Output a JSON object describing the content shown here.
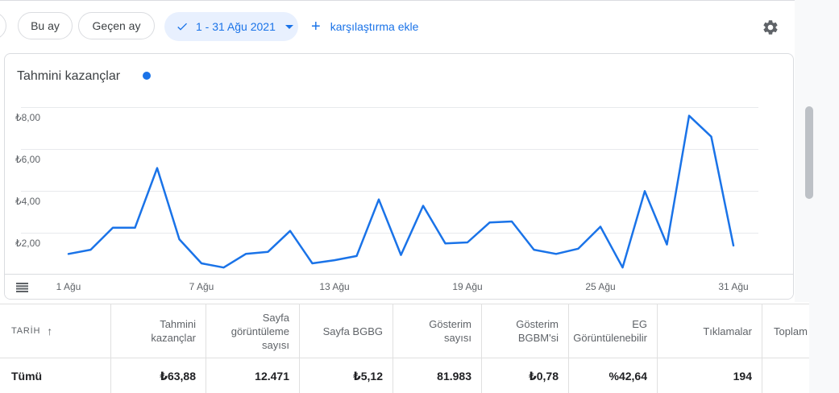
{
  "toolbar": {
    "this_month": "Bu ay",
    "last_month": "Geçen ay",
    "date_range": "1 - 31 Ağu 2021",
    "plus": "+",
    "add_comparison": "karşılaştırma ekle"
  },
  "chart": {
    "title": "Tahmini kazançlar"
  },
  "chart_data": {
    "type": "line",
    "title": "Tahmini kazançlar",
    "x": [
      1,
      2,
      3,
      4,
      5,
      6,
      7,
      8,
      9,
      10,
      11,
      12,
      13,
      14,
      15,
      16,
      17,
      18,
      19,
      20,
      21,
      22,
      23,
      24,
      25,
      26,
      27,
      28,
      29,
      30,
      31
    ],
    "series": [
      {
        "name": "Tahmini kazançlar",
        "color": "#1a73e8",
        "values": [
          1.0,
          1.2,
          2.25,
          2.25,
          5.1,
          1.7,
          0.55,
          0.35,
          1.0,
          1.1,
          2.1,
          0.55,
          0.7,
          0.9,
          3.6,
          0.95,
          3.3,
          1.5,
          1.55,
          2.5,
          2.55,
          1.2,
          1.0,
          1.25,
          2.3,
          0.35,
          4.0,
          1.45,
          7.6,
          6.6,
          1.4
        ]
      }
    ],
    "x_tick_labels": [
      "1 Ağu",
      "7 Ağu",
      "13 Ağu",
      "19 Ağu",
      "25 Ağu",
      "31 Ağu"
    ],
    "y_tick_labels": [
      "₺8,00",
      "₺6,00",
      "₺4,00",
      "₺2,00"
    ],
    "y_tick_values": [
      8,
      6,
      4,
      2
    ],
    "ylim": [
      0,
      8.3
    ],
    "grid": "horizontal",
    "legend_position": "right-of-title",
    "currency": "₺"
  },
  "table": {
    "sort_arrow": "↑",
    "columns": [
      "TARİH",
      "Tahmini kazançlar",
      "Sayfa görüntüleme sayısı",
      "Sayfa BGBG",
      "Gösterim sayısı",
      "Gösterim BGBM'si",
      "EG Görüntülenebilir",
      "Tıklamalar",
      "Toplam"
    ],
    "total_row": {
      "label": "Tümü",
      "values": [
        "₺63,88",
        "12.471",
        "₺5,12",
        "81.983",
        "₺0,78",
        "%42,64",
        "194",
        ""
      ]
    }
  },
  "colors": {
    "accent": "#1a73e8",
    "chip_bg": "#e8f0fe",
    "border": "#dadce0",
    "grid": "#e8eaed",
    "text_primary": "#202124",
    "text_secondary": "#5f6368",
    "scrollbar_thumb": "#bdc1c6",
    "side_strip_bg": "#f8f9fa"
  }
}
